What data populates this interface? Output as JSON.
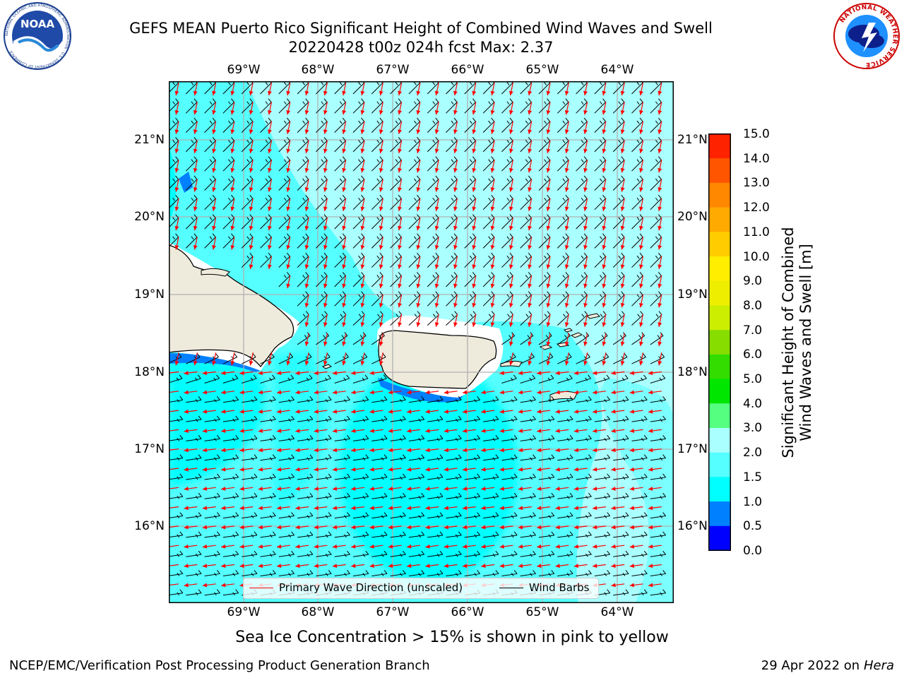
{
  "header": {
    "title_line1": "GEFS MEAN Puerto Rico Significant Height of Combined Wind Waves and Swell",
    "title_line2": "20220428 t00z 024h fcst   Max: 2.37",
    "noaa_logo_text": "NOAA",
    "noaa_ring_text": "NATIONAL OCEANIC AND ATMOSPHERIC ADMINISTRATION · U.S. DEPARTMENT OF COMMERCE",
    "nws_ring_text": "NATIONAL WEATHER SERVICE"
  },
  "map": {
    "lon_ticks": [
      "69°W",
      "68°W",
      "67°W",
      "66°W",
      "65°W",
      "64°W"
    ],
    "lat_ticks": [
      "21°N",
      "20°N",
      "19°N",
      "18°N",
      "17°N",
      "16°N"
    ],
    "land_color": "#efebdc",
    "ocean_base_color": "#00ffff"
  },
  "colorbar": {
    "label_line1": "Significant Height of Combined",
    "label_line2": "Wind Waves and Swell [m]",
    "ticks": [
      "15.0",
      "14.0",
      "13.0",
      "12.0",
      "11.0",
      "10.0",
      "9.0",
      "8.0",
      "7.0",
      "6.0",
      "5.0",
      "4.0",
      "3.0",
      "2.0",
      "1.5",
      "1.0",
      "0.5",
      "0.0"
    ],
    "colors_bottom_to_top": [
      "#0000ff",
      "#0080ff",
      "#00ffff",
      "#55ffff",
      "#aaffff",
      "#55ff80",
      "#00e600",
      "#33dd00",
      "#88dd00",
      "#ccee00",
      "#eeee00",
      "#ffee00",
      "#ffcc00",
      "#ffaa00",
      "#ff8800",
      "#ff5500",
      "#ff2200"
    ]
  },
  "legend": {
    "wave_direction_label": "Primary Wave Direction (unscaled)",
    "wind_barbs_label": "Wind Barbs",
    "wave_direction_color": "#ff0000",
    "wind_barbs_color": "#000000"
  },
  "footer": {
    "note": "Sea Ice Concentration > 15% is shown in pink to yellow",
    "credit": "NCEP/EMC/Verification Post Processing Product Generation Branch",
    "date": "29 Apr 2022 on",
    "machine": "Hera"
  }
}
